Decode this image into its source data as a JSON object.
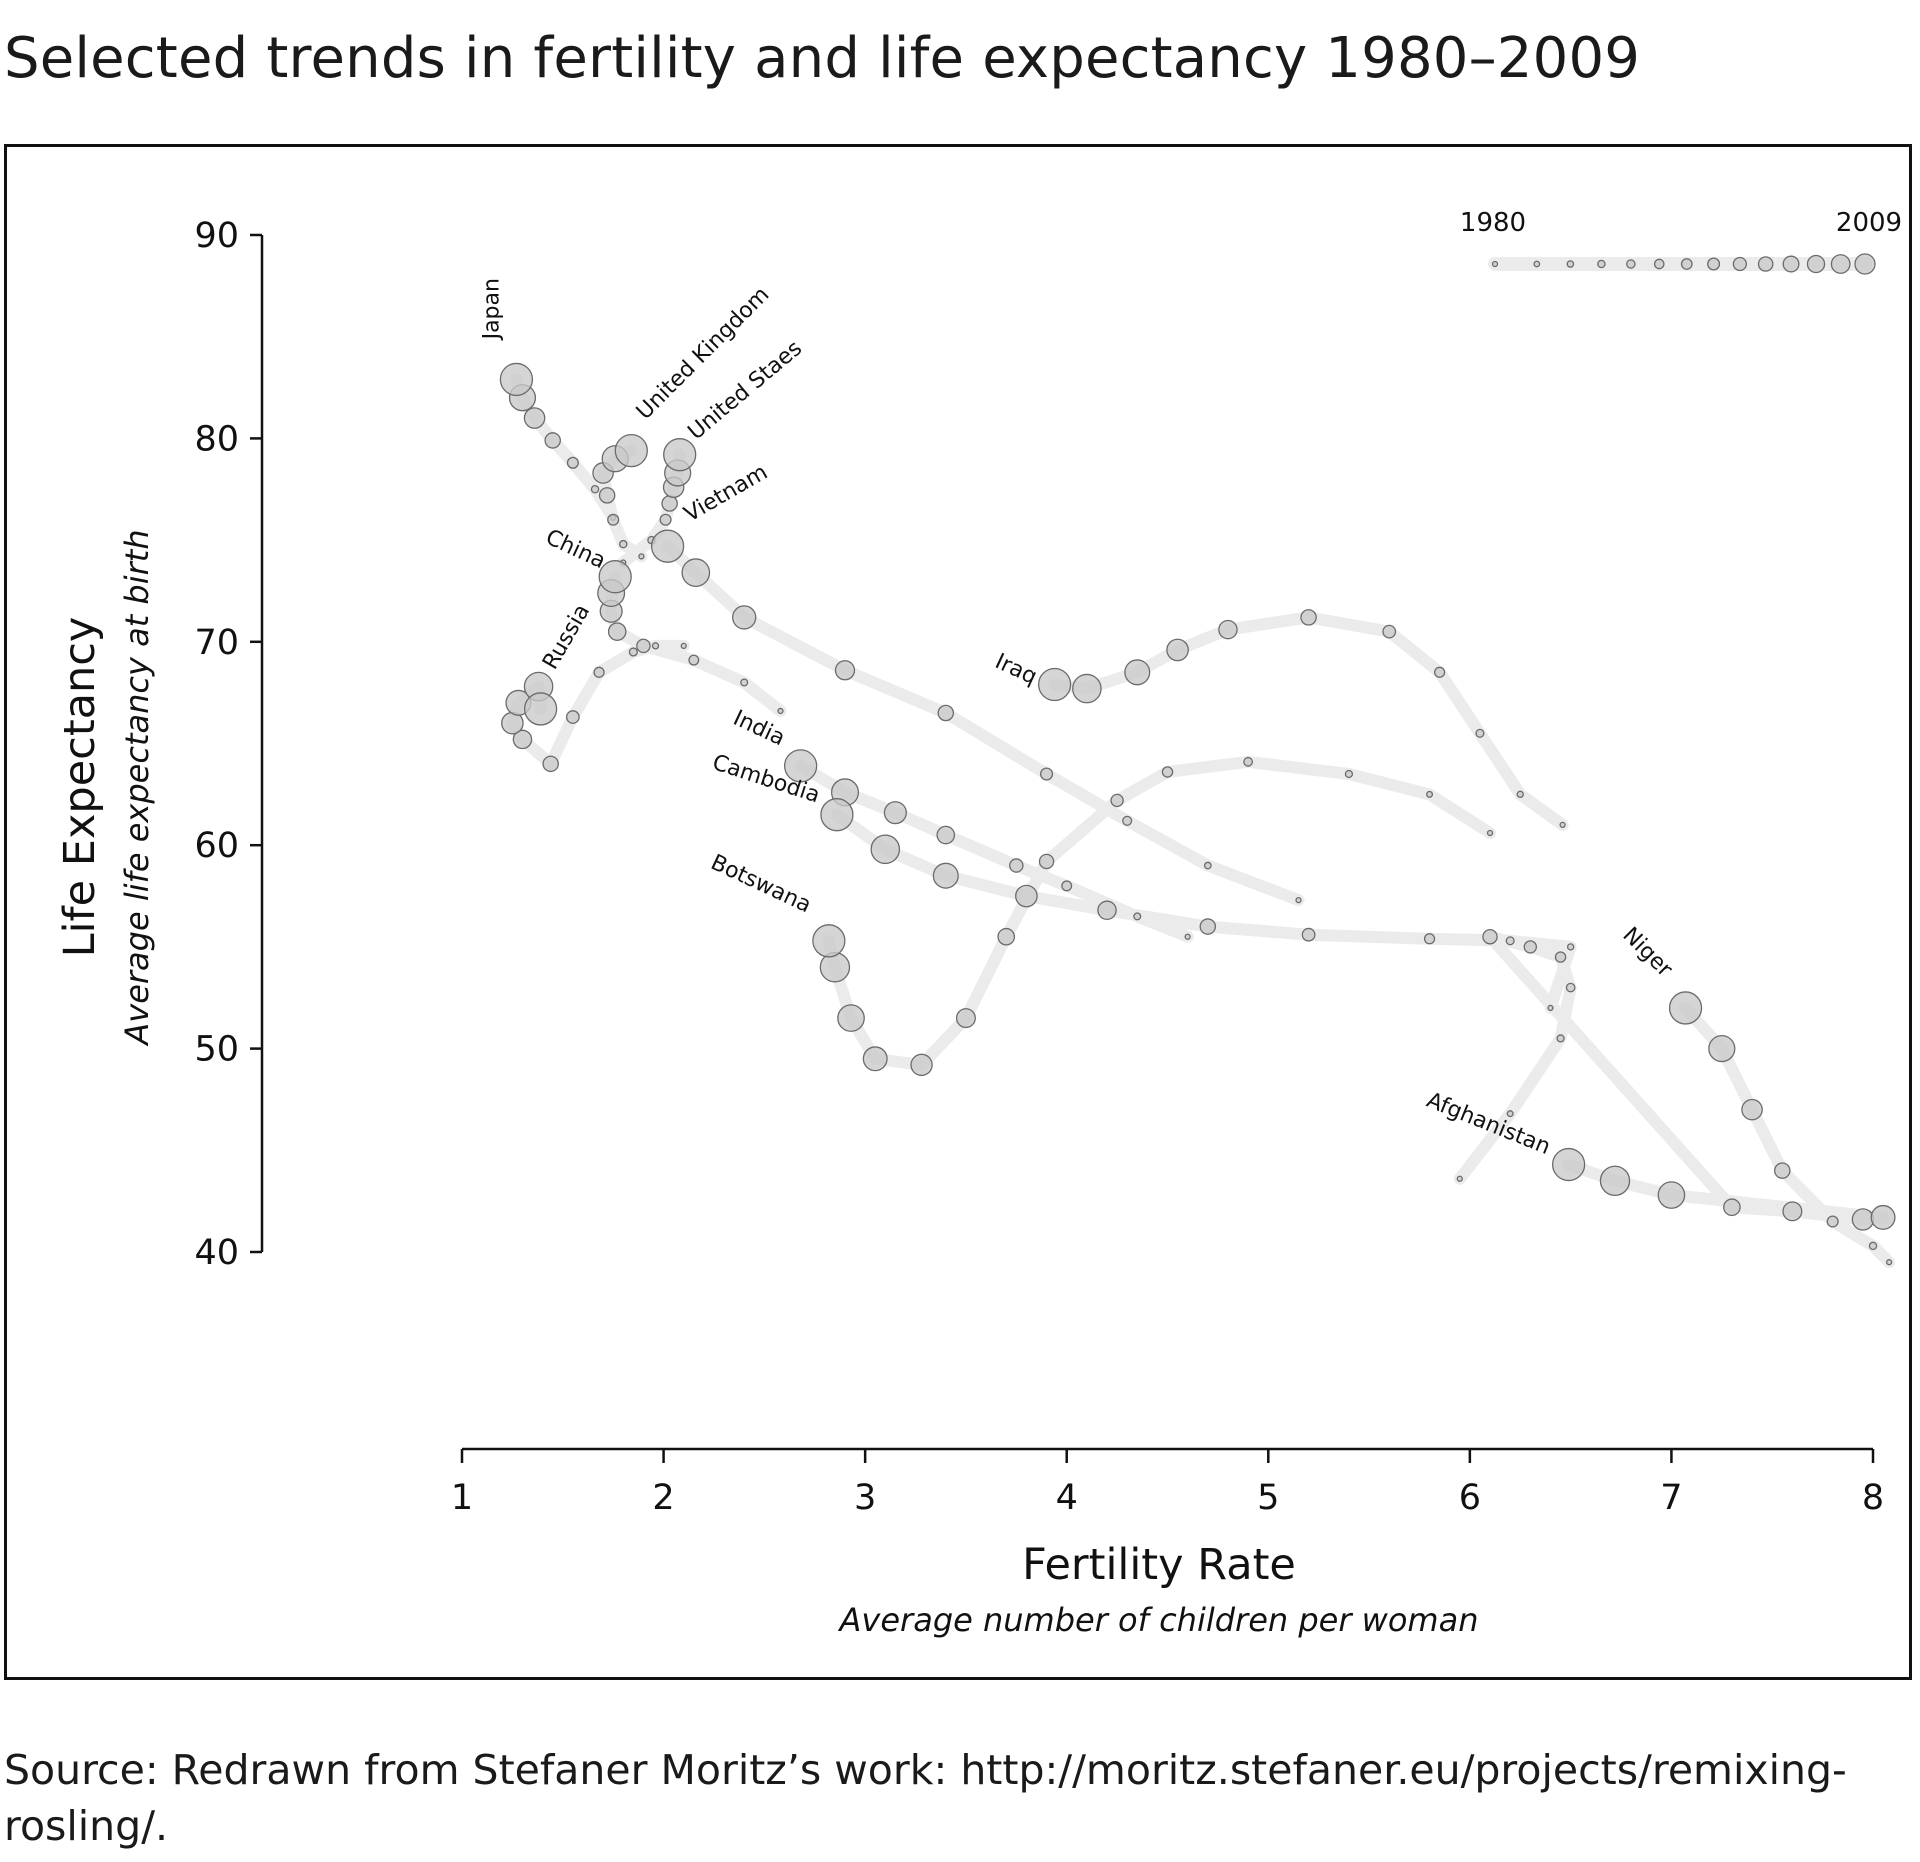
{
  "page": {
    "title": "Selected trends in fertility and life expectancy 1980–2009",
    "source": "Source: Redrawn from Stefaner Moritz’s work: http://moritz.stefaner.eu/projects/remixing-rosling/."
  },
  "chart_data": {
    "type": "scatter",
    "title": "Selected trends in fertility and life expectancy 1980–2009",
    "xlabel": "Fertility Rate",
    "xlabel_sub": "Average number of children per woman",
    "ylabel": "Life Expectancy",
    "ylabel_sub": "Average life expectancy at birth",
    "xlim": [
      1,
      8
    ],
    "ylim": [
      40,
      90
    ],
    "xticks": [
      1,
      2,
      3,
      4,
      5,
      6,
      7,
      8
    ],
    "yticks": [
      40,
      50,
      60,
      70,
      80,
      90
    ],
    "grid": false,
    "legend": {
      "position": "top-right",
      "start_label": "1980",
      "end_label": "2009",
      "encoding": "bubble size grows with year; trail runs from 1980 to 2009"
    },
    "series": [
      {
        "name": "Japan",
        "points": [
          [
            1.75,
            76.1
          ],
          [
            1.66,
            77.5
          ],
          [
            1.55,
            78.8
          ],
          [
            1.45,
            79.9
          ],
          [
            1.36,
            81.0
          ],
          [
            1.3,
            82.0
          ],
          [
            1.27,
            82.9
          ]
        ]
      },
      {
        "name": "United Kingdom",
        "points": [
          [
            1.89,
            74.2
          ],
          [
            1.8,
            74.8
          ],
          [
            1.75,
            76.0
          ],
          [
            1.72,
            77.2
          ],
          [
            1.7,
            78.3
          ],
          [
            1.76,
            79.0
          ],
          [
            1.84,
            79.4
          ]
        ]
      },
      {
        "name": "United Staes",
        "points": [
          [
            1.8,
            73.9
          ],
          [
            1.94,
            75.0
          ],
          [
            2.01,
            76.0
          ],
          [
            2.03,
            76.8
          ],
          [
            2.05,
            77.6
          ],
          [
            2.07,
            78.3
          ],
          [
            2.08,
            79.2
          ]
        ]
      },
      {
        "name": "Vietnam",
        "points": [
          [
            5.15,
            57.3
          ],
          [
            4.7,
            59.0
          ],
          [
            4.3,
            61.2
          ],
          [
            3.9,
            63.5
          ],
          [
            3.4,
            66.5
          ],
          [
            2.9,
            68.6
          ],
          [
            2.4,
            71.2
          ],
          [
            2.16,
            73.4
          ],
          [
            2.02,
            74.7
          ]
        ]
      },
      {
        "name": "China",
        "points": [
          [
            2.58,
            66.6
          ],
          [
            2.4,
            68.0
          ],
          [
            2.15,
            69.1
          ],
          [
            1.9,
            69.8
          ],
          [
            1.77,
            70.5
          ],
          [
            1.74,
            71.5
          ],
          [
            1.74,
            72.4
          ],
          [
            1.76,
            73.2
          ]
        ]
      },
      {
        "name": "Russia",
        "points": [
          [
            2.1,
            69.8
          ],
          [
            1.96,
            69.8
          ],
          [
            1.85,
            69.5
          ],
          [
            1.68,
            68.5
          ],
          [
            1.55,
            66.3
          ],
          [
            1.44,
            64.0
          ],
          [
            1.3,
            65.2
          ],
          [
            1.25,
            66.0
          ],
          [
            1.28,
            67.0
          ],
          [
            1.38,
            67.8
          ],
          [
            1.39,
            66.7
          ]
        ]
      },
      {
        "name": "Iraq",
        "points": [
          [
            6.46,
            61.0
          ],
          [
            6.25,
            62.5
          ],
          [
            6.05,
            65.5
          ],
          [
            5.85,
            68.5
          ],
          [
            5.6,
            70.5
          ],
          [
            5.2,
            71.2
          ],
          [
            4.8,
            70.6
          ],
          [
            4.55,
            69.6
          ],
          [
            4.35,
            68.5
          ],
          [
            4.1,
            67.7
          ],
          [
            3.94,
            67.9
          ]
        ]
      },
      {
        "name": "India",
        "points": [
          [
            4.6,
            55.5
          ],
          [
            4.35,
            56.5
          ],
          [
            4.0,
            58.0
          ],
          [
            3.75,
            59.0
          ],
          [
            3.4,
            60.5
          ],
          [
            3.15,
            61.6
          ],
          [
            2.9,
            62.6
          ],
          [
            2.68,
            63.9
          ]
        ]
      },
      {
        "name": "Cambodia",
        "points": [
          [
            6.4,
            52.0
          ],
          [
            6.5,
            55.0
          ],
          [
            6.2,
            55.3
          ],
          [
            5.8,
            55.4
          ],
          [
            5.2,
            55.6
          ],
          [
            4.7,
            56.0
          ],
          [
            4.2,
            56.8
          ],
          [
            3.8,
            57.5
          ],
          [
            3.4,
            58.5
          ],
          [
            3.1,
            59.8
          ],
          [
            2.86,
            61.5
          ]
        ]
      },
      {
        "name": "Botswana",
        "points": [
          [
            6.1,
            60.6
          ],
          [
            5.8,
            62.5
          ],
          [
            5.4,
            63.5
          ],
          [
            4.9,
            64.1
          ],
          [
            4.5,
            63.6
          ],
          [
            4.25,
            62.2
          ],
          [
            3.9,
            59.2
          ],
          [
            3.7,
            55.5
          ],
          [
            3.5,
            51.5
          ],
          [
            3.28,
            49.2
          ],
          [
            3.05,
            49.5
          ],
          [
            2.93,
            51.5
          ],
          [
            2.85,
            54.0
          ],
          [
            2.82,
            55.3
          ]
        ]
      },
      {
        "name": "Afghanistan",
        "points": [
          [
            5.95,
            43.6
          ],
          [
            6.2,
            46.8
          ],
          [
            6.45,
            50.5
          ],
          [
            6.5,
            53.0
          ],
          [
            6.45,
            54.5
          ],
          [
            6.3,
            55.0
          ],
          [
            6.1,
            55.5
          ],
          [
            7.3,
            42.2
          ],
          [
            7.6,
            42.0
          ],
          [
            7.95,
            41.6
          ],
          [
            8.05,
            41.7
          ],
          [
            7.0,
            42.8
          ],
          [
            6.72,
            43.5
          ],
          [
            6.49,
            44.3
          ]
        ]
      },
      {
        "name": "Niger",
        "points": [
          [
            8.08,
            39.5
          ],
          [
            8.0,
            40.3
          ],
          [
            7.8,
            41.5
          ],
          [
            7.55,
            44.0
          ],
          [
            7.4,
            47.0
          ],
          [
            7.25,
            50.0
          ],
          [
            7.07,
            52.0
          ]
        ]
      }
    ]
  }
}
